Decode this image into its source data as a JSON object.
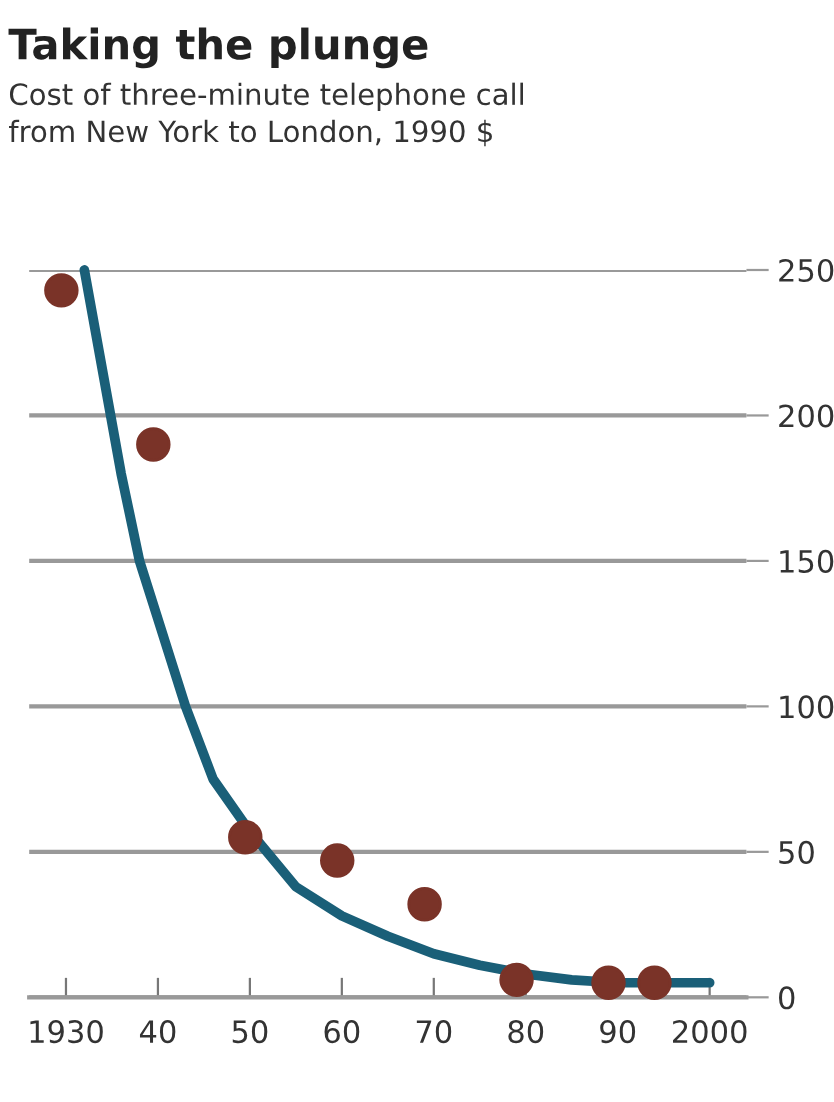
{
  "chart_data": {
    "type": "scatter",
    "title": "Taking the plunge",
    "subtitle": "Cost of three-minute telephone call\nfrom New York to London, 1990 $",
    "series": [
      {
        "type": "line",
        "color": "#1a5f78",
        "x": [
          1932,
          1934,
          1936,
          1938,
          1940,
          1943,
          1946,
          1950,
          1955,
          1960,
          1965,
          1970,
          1975,
          1980,
          1985,
          1990,
          1995,
          2000
        ],
        "values": [
          250,
          215,
          180,
          150,
          130,
          100,
          75,
          57,
          38,
          28,
          21,
          15,
          11,
          8,
          6,
          5,
          5,
          5
        ]
      },
      {
        "marker": "circle",
        "color": "#7a3328",
        "x": [
          1929.5,
          1939.5,
          1949.5,
          1959.5,
          1969,
          1979,
          1989,
          1994
        ],
        "values": [
          243,
          190,
          55,
          47,
          32,
          6,
          5,
          5
        ]
      }
    ],
    "grid": "y",
    "xlim": [
      1926,
      2004
    ],
    "xticks": [
      1930,
      {
        "value": 1940,
        "label": "40"
      },
      {
        "value": 1950,
        "label": "50"
      },
      {
        "value": 1960,
        "label": "60"
      },
      {
        "value": 1970,
        "label": "70"
      },
      {
        "value": 1980,
        "label": "80"
      },
      {
        "value": 1990,
        "label": "90"
      },
      2000
    ],
    "ylim": [
      0,
      250
    ],
    "yticks": [
      0,
      50,
      100,
      150,
      200,
      250
    ]
  }
}
